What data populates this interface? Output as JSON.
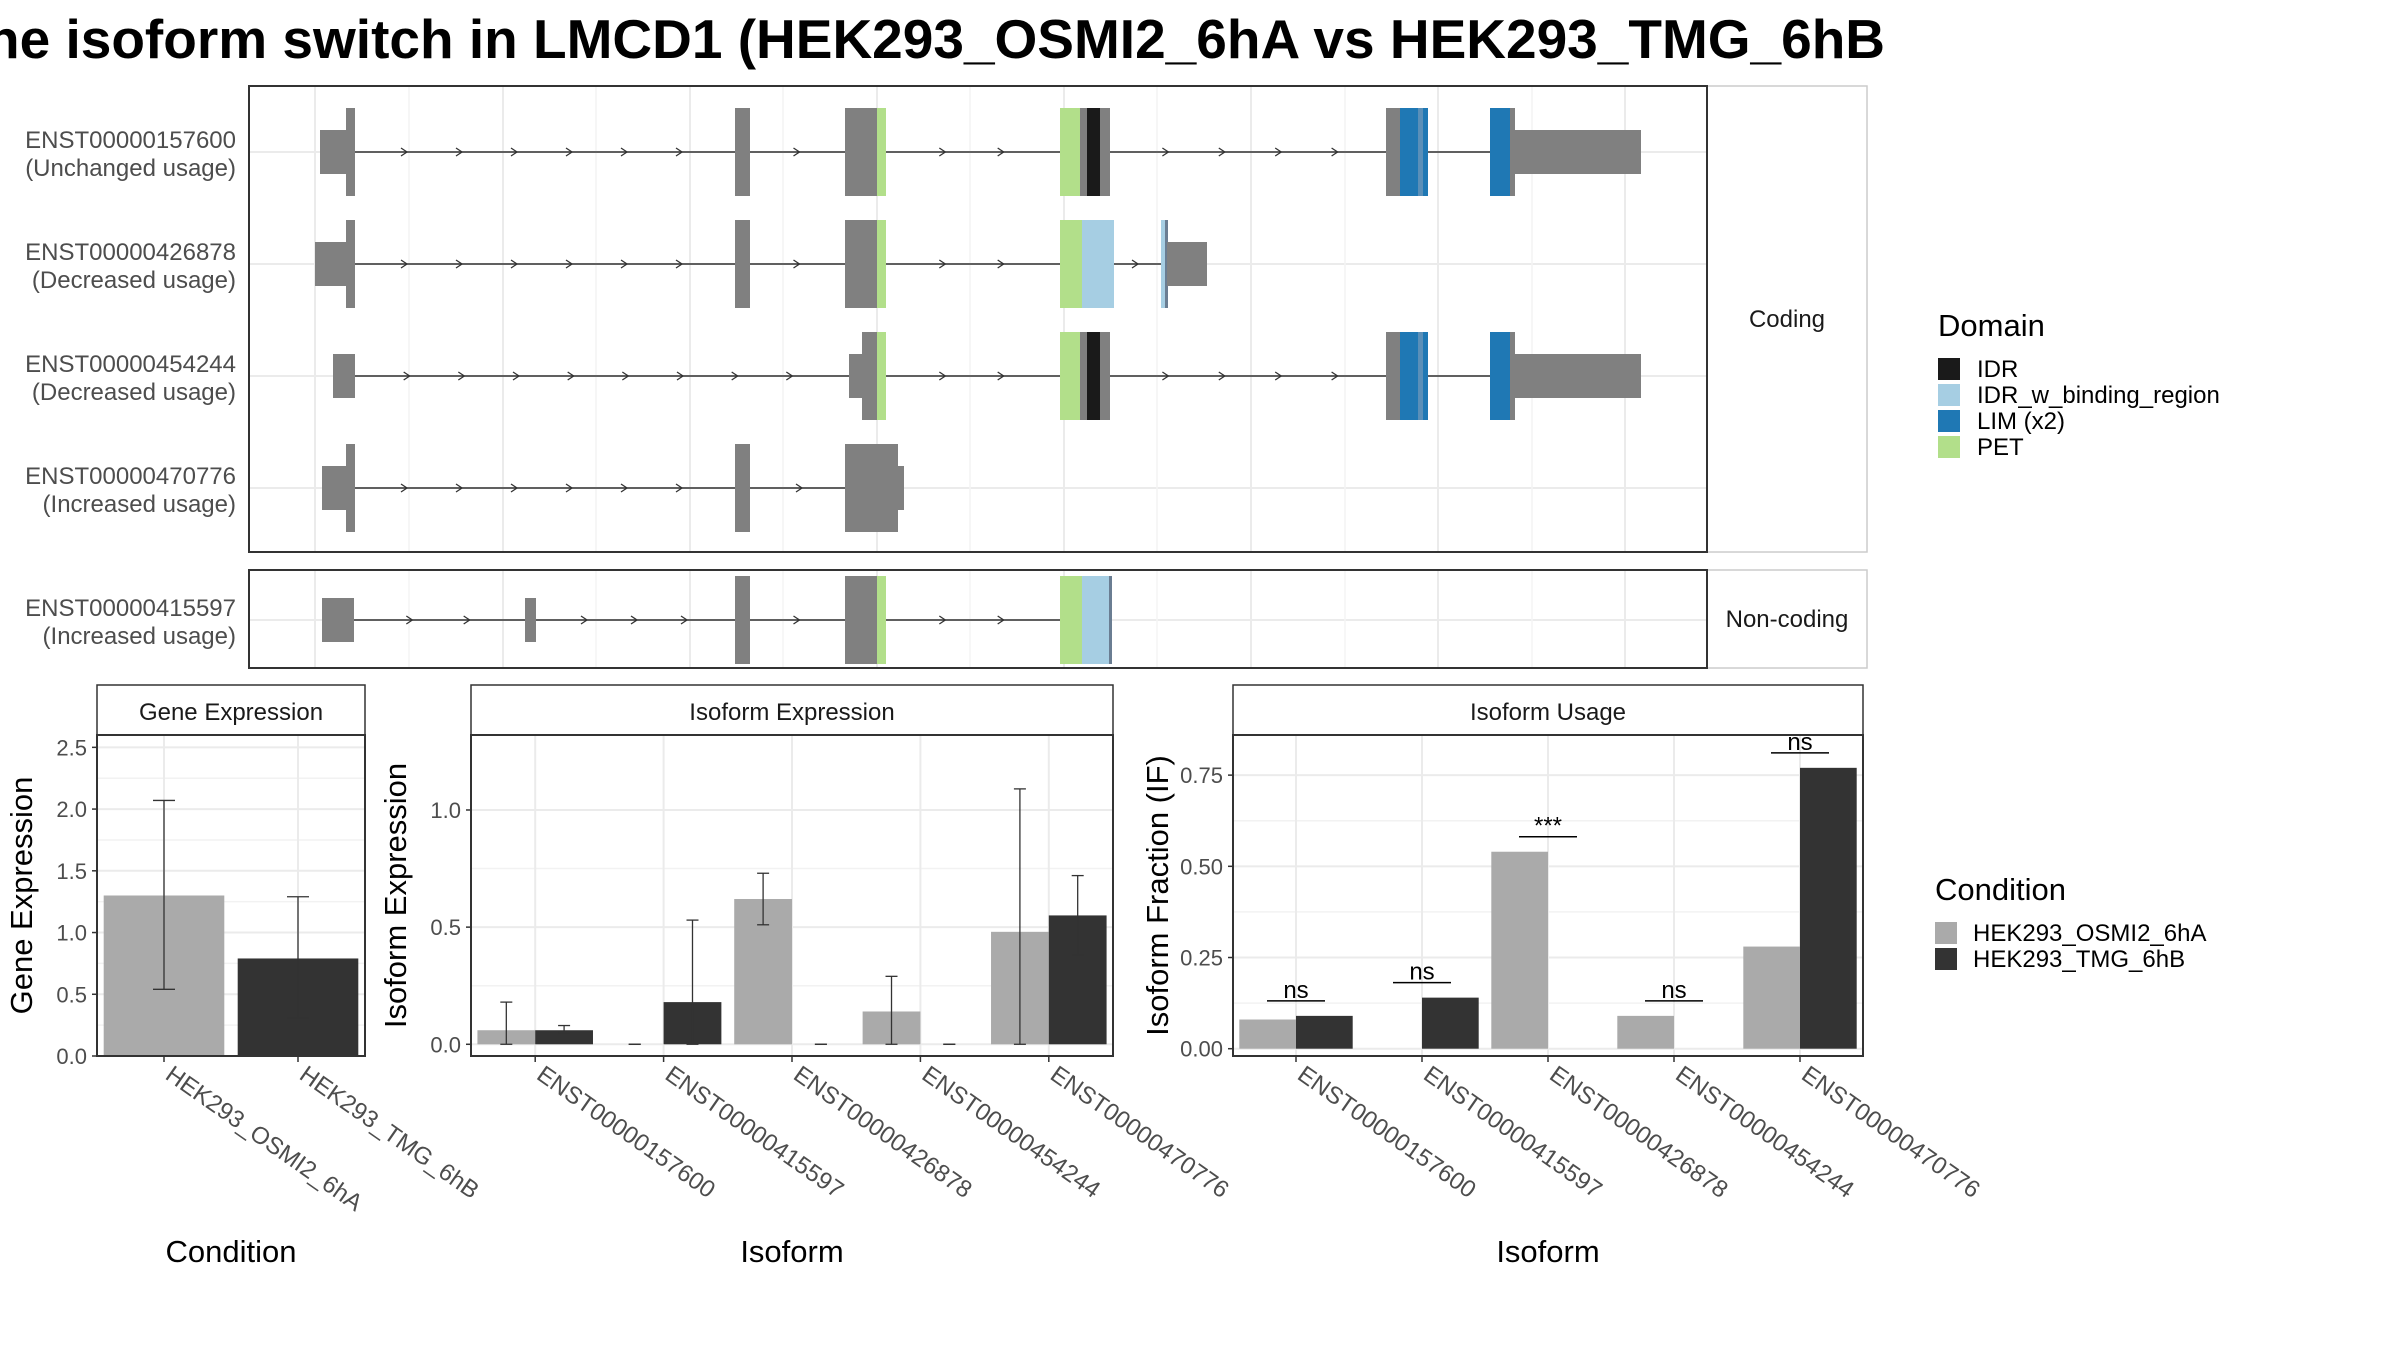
{
  "title": "he isoform switch in LMCD1 (HEK293_OSMI2_6hA vs HEK293_TMG_6hB",
  "colors": {
    "IDR": "#1a1a1a",
    "IDR_w_binding_region": "#a6cee3",
    "LIM (x2)": "#1f78b4",
    "PET": "#b2df8a",
    "exon": "#808080",
    "cond1": "#aaaaaa",
    "cond2": "#333333"
  },
  "domain_legend": {
    "title": "Domain",
    "items": [
      "IDR",
      "IDR_w_binding_region",
      "LIM (x2)",
      "PET"
    ]
  },
  "condition_legend": {
    "title": "Condition",
    "items": [
      "HEK293_OSMI2_6hA",
      "HEK293_TMG_6hB"
    ]
  },
  "structure": {
    "panels": [
      {
        "label": "Coding",
        "transcripts": [
          {
            "id": "ENST00000157600",
            "usage": "(Unchanged usage)"
          },
          {
            "id": "ENST00000426878",
            "usage": "(Decreased usage)"
          },
          {
            "id": "ENST00000454244",
            "usage": "(Decreased usage)"
          },
          {
            "id": "ENST00000470776",
            "usage": "(Increased usage)"
          }
        ]
      },
      {
        "label": "Non-coding",
        "transcripts": [
          {
            "id": "ENST00000415597",
            "usage": "(Increased usage)"
          }
        ]
      }
    ]
  },
  "chart_data": [
    {
      "type": "bar",
      "title": "Gene Expression",
      "xlabel": "Condition",
      "ylabel": "Gene Expression",
      "categories": [
        "HEK293_OSMI2_6hA",
        "HEK293_TMG_6hB"
      ],
      "values": [
        1.3,
        0.79
      ],
      "error_low": [
        0.54,
        0.31
      ],
      "error_high": [
        2.07,
        1.29
      ],
      "ylim": [
        0,
        2.6
      ],
      "yticks": [
        "0.0",
        "0.5",
        "1.0",
        "1.5",
        "2.0",
        "2.5"
      ]
    },
    {
      "type": "bar",
      "title": "Isoform Expression",
      "xlabel": "Isoform",
      "ylabel": "Isoform Expression",
      "categories": [
        "ENST00000157600",
        "ENST00000415597",
        "ENST00000426878",
        "ENST00000454244",
        "ENST00000470776"
      ],
      "series": [
        {
          "name": "HEK293_OSMI2_6hA",
          "values": [
            0.06,
            0.0,
            0.62,
            0.14,
            0.48
          ],
          "error_low": [
            0.0,
            0.0,
            0.51,
            0.0,
            0.0
          ],
          "error_high": [
            0.18,
            0.0,
            0.73,
            0.29,
            1.09
          ]
        },
        {
          "name": "HEK293_TMG_6hB",
          "values": [
            0.06,
            0.18,
            0.0,
            0.0,
            0.55
          ],
          "error_low": [
            0.05,
            0.0,
            0.0,
            0.0,
            0.38
          ],
          "error_high": [
            0.08,
            0.53,
            0.0,
            0.0,
            0.72
          ]
        }
      ],
      "ylim": [
        -0.05,
        1.32
      ],
      "yticks": [
        "0.0",
        "0.5",
        "1.0"
      ]
    },
    {
      "type": "bar",
      "title": "Isoform Usage",
      "xlabel": "Isoform",
      "ylabel": "Isoform Fraction (IF)",
      "categories": [
        "ENST00000157600",
        "ENST00000415597",
        "ENST00000426878",
        "ENST00000454244",
        "ENST00000470776"
      ],
      "series": [
        {
          "name": "HEK293_OSMI2_6hA",
          "values": [
            0.08,
            0.0,
            0.54,
            0.09,
            0.28
          ]
        },
        {
          "name": "HEK293_TMG_6hB",
          "values": [
            0.09,
            0.14,
            0.0,
            0.0,
            0.77
          ]
        }
      ],
      "annotations": [
        "ns",
        "ns",
        "***",
        "ns",
        "ns"
      ],
      "ylim": [
        -0.02,
        0.86
      ],
      "yticks": [
        "0.00",
        "0.25",
        "0.50",
        "0.75"
      ]
    }
  ]
}
